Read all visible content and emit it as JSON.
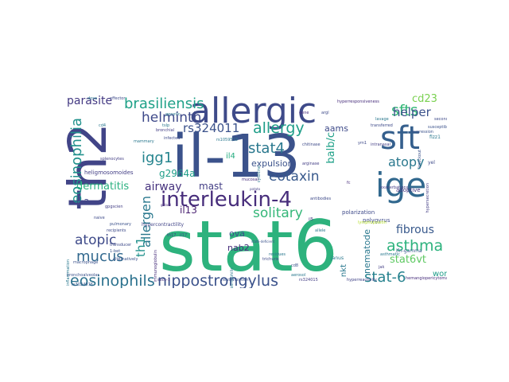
{
  "words": [
    {
      "text": "stat6",
      "color": "#2db27d",
      "vertical": false
    },
    {
      "text": "il-13",
      "color": "#3b528b",
      "vertical": false
    },
    {
      "text": "th2",
      "color": "#414487",
      "vertical": true
    },
    {
      "text": "allergic",
      "color": "#3e4a89",
      "vertical": false
    },
    {
      "text": "sft",
      "color": "#355f8d",
      "vertical": false
    },
    {
      "text": "ige",
      "color": "#31688e",
      "vertical": false
    },
    {
      "text": "interleukin-4",
      "color": "#472d7b",
      "vertical": false
    },
    {
      "text": "eosinophils",
      "color": "#2c728e",
      "vertical": false
    },
    {
      "text": "nippostrongylus",
      "color": "#3b528b",
      "vertical": false
    },
    {
      "text": "eosinophilia",
      "color": "#21918c",
      "vertical": true
    },
    {
      "text": "brasiliensis",
      "color": "#1fa188",
      "vertical": false
    },
    {
      "text": "helminth",
      "color": "#3e4989",
      "vertical": false
    },
    {
      "text": "allergy",
      "color": "#1f9e89",
      "vertical": false
    },
    {
      "text": "sfts",
      "color": "#35b779",
      "vertical": false
    },
    {
      "text": "stat4",
      "color": "#2a788e",
      "vertical": false
    },
    {
      "text": "igg1",
      "color": "#25848e",
      "vertical": false
    },
    {
      "text": "eotaxin",
      "color": "#38598c",
      "vertical": false
    },
    {
      "text": "atopy",
      "color": "#2a788e",
      "vertical": false
    },
    {
      "text": "solitary",
      "color": "#35b779",
      "vertical": false
    },
    {
      "text": "mucus",
      "color": "#31688e",
      "vertical": false
    },
    {
      "text": "asthma",
      "color": "#2db27d",
      "vertical": false
    },
    {
      "text": "stat-6",
      "color": "#26828e",
      "vertical": false
    },
    {
      "text": "atopic",
      "color": "#3e4a89",
      "vertical": false
    },
    {
      "text": "allergen",
      "color": "#2a788e",
      "vertical": true
    },
    {
      "text": "rs324011",
      "color": "#3b528b",
      "vertical": false
    },
    {
      "text": "helper",
      "color": "#3b528b",
      "vertical": false
    },
    {
      "text": "parasite",
      "color": "#443a83",
      "vertical": false
    },
    {
      "text": "cd23",
      "color": "#7ad151",
      "vertical": false
    },
    {
      "text": "airway",
      "color": "#46327e",
      "vertical": false
    },
    {
      "text": "fibrous",
      "color": "#38598c",
      "vertical": false
    },
    {
      "text": "th1",
      "color": "#21918c",
      "vertical": true
    },
    {
      "text": "stat6vt",
      "color": "#5ec962",
      "vertical": false
    },
    {
      "text": "dermatitis",
      "color": "#2ab07f",
      "vertical": false
    },
    {
      "text": "g2964a",
      "color": "#1f9e89",
      "vertical": false
    },
    {
      "text": "mast",
      "color": "#433e85",
      "vertical": false
    },
    {
      "text": "il13",
      "color": "#481f70",
      "vertical": false
    },
    {
      "text": "balb/c",
      "color": "#1fa188",
      "vertical": true
    },
    {
      "text": "expulsion",
      "color": "#3b528b",
      "vertical": false
    },
    {
      "text": "aams",
      "color": "#3e4a89",
      "vertical": false
    },
    {
      "text": "nematode",
      "color": "#2a788e",
      "vertical": true
    },
    {
      "text": "nab2",
      "color": "#472d7b",
      "vertical": false
    },
    {
      "text": "ova",
      "color": "#3b528b",
      "vertical": false
    },
    {
      "text": "nkt",
      "color": "#2a788e",
      "vertical": true
    },
    {
      "text": "worm",
      "color": "#1f9e89",
      "vertical": false
    },
    {
      "text": "m2",
      "color": "#404688",
      "vertical": false
    },
    {
      "text": "il4",
      "color": "#27ad81",
      "vertical": false
    },
    {
      "text": "heligmosomoides",
      "color": "#433e85",
      "vertical": false
    },
    {
      "text": "polarization",
      "color": "#3e4a89",
      "vertical": false
    },
    {
      "text": "adoptive",
      "color": "#46337e",
      "vertical": false
    },
    {
      "text": "polygyrus",
      "color": "#3e4a89",
      "vertical": false
    },
    {
      "text": "hypercontractility",
      "color": "#414487",
      "vertical": false
    },
    {
      "text": "janus",
      "color": "#2a788e",
      "vertical": false
    },
    {
      "text": "bronchoalveolar",
      "color": "#3b528b",
      "vertical": false
    },
    {
      "text": "ifn-gamma",
      "color": "#38598c",
      "vertical": false
    },
    {
      "text": "hyperresponsiveness",
      "color": "#472d7b",
      "vertical": false
    },
    {
      "text": "transferred",
      "color": "#3e4a89",
      "vertical": false
    },
    {
      "text": "intranasal",
      "color": "#433e85",
      "vertical": false
    },
    {
      "text": "lymphopoietin",
      "color": "#b5de2b",
      "vertical": false
    },
    {
      "text": "lavage",
      "color": "#2a788e",
      "vertical": false
    },
    {
      "text": "hypersecretion",
      "color": "#433e85",
      "vertical": true
    },
    {
      "text": "hemangiopericytoma",
      "color": "#472d7b",
      "vertical": false
    },
    {
      "text": "hyperreactivity",
      "color": "#414487",
      "vertical": false
    },
    {
      "text": "asthmatic",
      "color": "#2a788e",
      "vertical": false
    },
    {
      "text": "neutralization",
      "color": "#3b528b",
      "vertical": false
    },
    {
      "text": "socs-1",
      "color": "#46337e",
      "vertical": false
    },
    {
      "text": "rs324015",
      "color": "#433e85",
      "vertical": false
    },
    {
      "text": "rs3024976",
      "color": "#38598c",
      "vertical": false
    },
    {
      "text": "macrophage",
      "color": "#3b528b",
      "vertical": false
    },
    {
      "text": "cytokine",
      "color": "#2a788e",
      "vertical": true
    },
    {
      "text": "trichuris",
      "color": "#3e4a89",
      "vertical": false
    },
    {
      "text": "arginase",
      "color": "#433e85",
      "vertical": false
    },
    {
      "text": "mucosal",
      "color": "#472d7b",
      "vertical": false
    },
    {
      "text": "chitinase",
      "color": "#3e4a89",
      "vertical": false
    },
    {
      "text": "eosinophilic",
      "color": "#2a788e",
      "vertical": true
    },
    {
      "text": "stat6-deficient",
      "color": "#3b528b",
      "vertical": false
    },
    {
      "text": "yel",
      "color": "#3e4a89",
      "vertical": false
    },
    {
      "text": "fizz1",
      "color": "#2a788e",
      "vertical": false
    },
    {
      "text": "potato",
      "color": "#433e85",
      "vertical": false
    },
    {
      "text": "gata-3",
      "color": "#472d7b",
      "vertical": false
    },
    {
      "text": "naive",
      "color": "#3e4a89",
      "vertical": false
    },
    {
      "text": "cd4",
      "color": "#2a788e",
      "vertical": false
    },
    {
      "text": "th17",
      "color": "#414487",
      "vertical": false
    },
    {
      "text": "il17",
      "color": "#3b528b",
      "vertical": false
    },
    {
      "text": "il5",
      "color": "#46337e",
      "vertical": false
    },
    {
      "text": "tslp",
      "color": "#2a788e",
      "vertical": false
    },
    {
      "text": "argl",
      "color": "#3e4a89",
      "vertical": false
    },
    {
      "text": "jak",
      "color": "#433e85",
      "vertical": false
    },
    {
      "text": "cd8",
      "color": "#3b528b",
      "vertical": false
    },
    {
      "text": "aerosol",
      "color": "#2a788e",
      "vertical": false
    },
    {
      "text": "ym1",
      "color": "#3e4a89",
      "vertical": false
    },
    {
      "text": "fc",
      "color": "#472d7b",
      "vertical": false
    },
    {
      "text": "1-bet",
      "color": "#3b528b",
      "vertical": false
    },
    {
      "text": "residues",
      "color": "#2a788e",
      "vertical": false
    },
    {
      "text": "splenocytes",
      "color": "#433e85",
      "vertical": false
    },
    {
      "text": "recipients",
      "color": "#3e4a89",
      "vertical": false
    },
    {
      "text": "pulmonary",
      "color": "#3b528b",
      "vertical": false
    },
    {
      "text": "inflammation",
      "color": "#2a788e",
      "vertical": true
    },
    {
      "text": "transducer",
      "color": "#3e4a89",
      "vertical": false
    },
    {
      "text": "immunoglobulin",
      "color": "#472d7b",
      "vertical": true
    },
    {
      "text": "alternatively",
      "color": "#3b528b",
      "vertical": false
    },
    {
      "text": "genetic",
      "color": "#2a788e",
      "vertical": false
    },
    {
      "text": "bronchial",
      "color": "#433e85",
      "vertical": false
    },
    {
      "text": "infected",
      "color": "#3e4a89",
      "vertical": false
    },
    {
      "text": "knockout",
      "color": "#3b528b",
      "vertical": true
    },
    {
      "text": "rs1059513",
      "color": "#2a788e",
      "vertical": false
    },
    {
      "text": "exacerbations",
      "color": "#433e85",
      "vertical": false
    },
    {
      "text": "secondary",
      "color": "#3e4a89",
      "vertical": false
    },
    {
      "text": "susceptibility",
      "color": "#3b528b",
      "vertical": false
    },
    {
      "text": "mammary",
      "color": "#2a788e",
      "vertical": false
    },
    {
      "text": "antibodies",
      "color": "#3e4a89",
      "vertical": false
    },
    {
      "text": "gene",
      "color": "#472d7b",
      "vertical": false
    },
    {
      "text": "expression",
      "color": "#3b528b",
      "vertical": false
    },
    {
      "text": "allele",
      "color": "#2a788e",
      "vertical": false
    },
    {
      "text": "gpgscien",
      "color": "#433e85",
      "vertical": false
    },
    {
      "text": "effector",
      "color": "#3e4a89",
      "vertical": false
    },
    {
      "text": "dose",
      "color": "#2a788e",
      "vertical": false
    }
  ]
}
